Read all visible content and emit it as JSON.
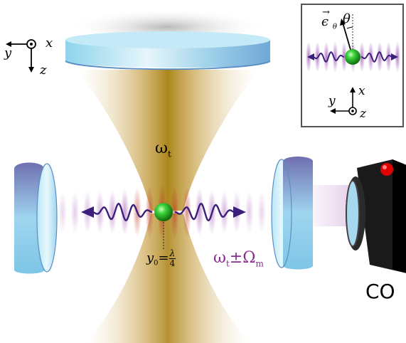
{
  "labels": {
    "tweezer_frequency": "ω",
    "tweezer_subscript": "t",
    "sideband_frequency": "ω",
    "sideband_subscript": "t",
    "sideband_rest": "±Ω",
    "sideband_rest_subscript": "m",
    "position_y": "y",
    "position_sub": "0",
    "position_eq": "=",
    "position_num": "λ",
    "position_den": "4",
    "detector": "CO"
  },
  "axes_main": {
    "x": "x",
    "y": "y",
    "z": "z"
  },
  "inset": {
    "polarization_vector": "ϵ",
    "polarization_sub": "θ",
    "angle": "θ",
    "axes": {
      "x": "x",
      "y": "y",
      "z": "z"
    }
  },
  "colors": {
    "beam_gold": "#b8860b",
    "standing_wave": "#9b4fb0",
    "sideband_text": "#8a2b8f",
    "phonon_arrow": "#3b1f7a",
    "particle": "#1db31d",
    "lens": "#7fbfe0",
    "detector_body": "#111111",
    "detector_light": "#e00000"
  }
}
